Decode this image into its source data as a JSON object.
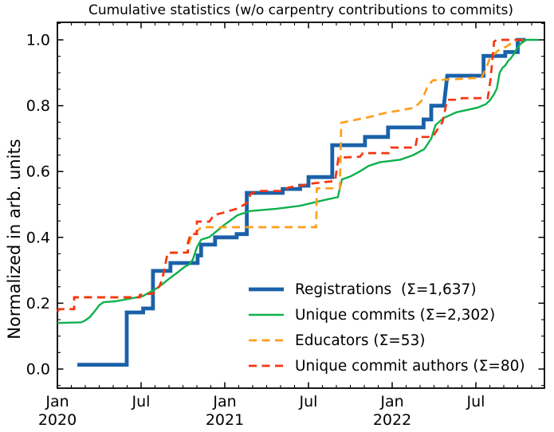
{
  "title": "Cumulative statistics (w/o carpentry contributions to commits)",
  "chart_data": {
    "type": "line",
    "title": "Cumulative statistics (w/o carpentry contributions to commits)",
    "xlabel": "",
    "ylabel": "Normalized in arb. units",
    "x_unit": "months since Jan 2020",
    "xlim_months": [
      0,
      34.9
    ],
    "ylim": [
      -0.06,
      1.05
    ],
    "grid": false,
    "tick_direction": "in",
    "ticks_on_all_sides": true,
    "legend_position": "lower right",
    "x_major_ticks": [
      {
        "month": 0,
        "label": "Jan",
        "year": "2020"
      },
      {
        "month": 6,
        "label": "Jul",
        "year": ""
      },
      {
        "month": 12,
        "label": "Jan",
        "year": "2021"
      },
      {
        "month": 18,
        "label": "Jul",
        "year": ""
      },
      {
        "month": 24,
        "label": "Jan",
        "year": "2022"
      },
      {
        "month": 30,
        "label": "Jul",
        "year": ""
      }
    ],
    "x_minor_tick_every_months": 1,
    "y_major_ticks": [
      {
        "value": 0.0,
        "label": "0.0"
      },
      {
        "value": 0.2,
        "label": "0.2"
      },
      {
        "value": 0.4,
        "label": "0.4"
      },
      {
        "value": 0.6,
        "label": "0.6"
      },
      {
        "value": 0.8,
        "label": "0.8"
      },
      {
        "value": 1.0,
        "label": "1.0"
      }
    ],
    "y_minor_tick_step": 0.05,
    "series": [
      {
        "name": "registrations",
        "label": "Registrations  (Σ=1,637)",
        "total": "1,637",
        "color": "#1a61a9",
        "style": "solid",
        "width": 4.8,
        "points": [
          [
            1.43,
            0.013
          ],
          [
            4.97,
            0.013
          ],
          [
            4.97,
            0.172
          ],
          [
            6.15,
            0.172
          ],
          [
            6.15,
            0.184
          ],
          [
            6.85,
            0.184
          ],
          [
            6.85,
            0.298
          ],
          [
            8.1,
            0.298
          ],
          [
            8.1,
            0.322
          ],
          [
            10.05,
            0.322
          ],
          [
            10.05,
            0.345
          ],
          [
            10.3,
            0.345
          ],
          [
            10.3,
            0.378
          ],
          [
            11.3,
            0.378
          ],
          [
            11.3,
            0.4
          ],
          [
            12.85,
            0.4
          ],
          [
            12.85,
            0.41
          ],
          [
            13.58,
            0.41
          ],
          [
            13.58,
            0.535
          ],
          [
            16.15,
            0.535
          ],
          [
            16.15,
            0.547
          ],
          [
            17.4,
            0.547
          ],
          [
            17.4,
            0.557
          ],
          [
            18.0,
            0.557
          ],
          [
            18.0,
            0.583
          ],
          [
            19.7,
            0.583
          ],
          [
            19.7,
            0.68
          ],
          [
            22.05,
            0.68
          ],
          [
            22.05,
            0.705
          ],
          [
            23.7,
            0.705
          ],
          [
            23.7,
            0.734
          ],
          [
            26.25,
            0.734
          ],
          [
            26.25,
            0.758
          ],
          [
            26.8,
            0.758
          ],
          [
            26.8,
            0.8
          ],
          [
            27.7,
            0.8
          ],
          [
            27.95,
            0.891
          ],
          [
            30.55,
            0.891
          ],
          [
            30.55,
            0.951
          ],
          [
            32.1,
            0.951
          ],
          [
            32.1,
            0.963
          ],
          [
            33.0,
            0.963
          ],
          [
            33.0,
            1.0
          ],
          [
            33.55,
            1.0
          ]
        ]
      },
      {
        "name": "unique_commits",
        "label": "Unique commits (Σ=2,302)",
        "total": "2,302",
        "color": "#0fb14c",
        "style": "solid",
        "width": 2.4,
        "points": [
          [
            0,
            0.14
          ],
          [
            1.7,
            0.142
          ],
          [
            2.0,
            0.148
          ],
          [
            2.3,
            0.157
          ],
          [
            2.7,
            0.177
          ],
          [
            3.0,
            0.194
          ],
          [
            3.3,
            0.203
          ],
          [
            4.2,
            0.206
          ],
          [
            5.1,
            0.213
          ],
          [
            6.1,
            0.221
          ],
          [
            7.0,
            0.242
          ],
          [
            7.5,
            0.257
          ],
          [
            8.0,
            0.274
          ],
          [
            8.6,
            0.293
          ],
          [
            9.1,
            0.31
          ],
          [
            9.45,
            0.318
          ],
          [
            9.7,
            0.332
          ],
          [
            10.0,
            0.37
          ],
          [
            10.3,
            0.393
          ],
          [
            10.9,
            0.401
          ],
          [
            11.9,
            0.436
          ],
          [
            12.9,
            0.467
          ],
          [
            13.8,
            0.48
          ],
          [
            15.7,
            0.487
          ],
          [
            17.4,
            0.496
          ],
          [
            18.2,
            0.504
          ],
          [
            19.4,
            0.516
          ],
          [
            20.1,
            0.522
          ],
          [
            20.4,
            0.576
          ],
          [
            21.0,
            0.585
          ],
          [
            21.7,
            0.601
          ],
          [
            22.3,
            0.617
          ],
          [
            23.1,
            0.628
          ],
          [
            24.6,
            0.636
          ],
          [
            25.5,
            0.65
          ],
          [
            26.3,
            0.668
          ],
          [
            26.8,
            0.7
          ],
          [
            27.1,
            0.741
          ],
          [
            27.7,
            0.763
          ],
          [
            28.6,
            0.78
          ],
          [
            30.1,
            0.794
          ],
          [
            30.7,
            0.804
          ],
          [
            31.0,
            0.816
          ],
          [
            31.3,
            0.835
          ],
          [
            31.5,
            0.852
          ],
          [
            31.7,
            0.9
          ],
          [
            31.9,
            0.915
          ],
          [
            32.1,
            0.922
          ],
          [
            32.3,
            0.935
          ],
          [
            32.5,
            0.944
          ],
          [
            32.7,
            0.956
          ],
          [
            32.9,
            0.971
          ],
          [
            33.2,
            0.988
          ],
          [
            33.6,
            1.0
          ],
          [
            34.5,
            1.0
          ]
        ]
      },
      {
        "name": "educators",
        "label": "Educators (Σ=53)",
        "total": "53",
        "color": "#ff9e1c",
        "style": "dashed",
        "width": 2.7,
        "points": [
          [
            0,
            0.175
          ],
          [
            0.15,
            0.182
          ],
          [
            1.2,
            0.182
          ],
          [
            1.2,
            0.218
          ],
          [
            5.9,
            0.218
          ],
          [
            5.9,
            0.225
          ],
          [
            6.9,
            0.23
          ],
          [
            7.0,
            0.242
          ],
          [
            7.3,
            0.25
          ],
          [
            7.45,
            0.266
          ],
          [
            7.55,
            0.28
          ],
          [
            7.7,
            0.31
          ],
          [
            7.9,
            0.353
          ],
          [
            9.35,
            0.354
          ],
          [
            9.45,
            0.383
          ],
          [
            9.6,
            0.402
          ],
          [
            10.3,
            0.431
          ],
          [
            18.55,
            0.431
          ],
          [
            18.6,
            0.549
          ],
          [
            20.25,
            0.549
          ],
          [
            20.35,
            0.748
          ],
          [
            20.9,
            0.753
          ],
          [
            22.3,
            0.765
          ],
          [
            23.4,
            0.777
          ],
          [
            25.6,
            0.794
          ],
          [
            26.1,
            0.815
          ],
          [
            26.5,
            0.855
          ],
          [
            26.9,
            0.877
          ],
          [
            30.4,
            0.885
          ],
          [
            30.7,
            0.91
          ],
          [
            31.0,
            0.944
          ],
          [
            31.6,
            0.968
          ],
          [
            32.2,
            0.98
          ],
          [
            32.7,
            0.995
          ],
          [
            33.0,
            1.0
          ],
          [
            33.6,
            1.0
          ]
        ]
      },
      {
        "name": "unique_commit_authors",
        "label": "Unique commit authors (Σ=80)",
        "total": "80",
        "color": "#f53512",
        "style": "dashed",
        "width": 2.7,
        "points": [
          [
            0,
            0.175
          ],
          [
            0.15,
            0.182
          ],
          [
            1.2,
            0.182
          ],
          [
            1.2,
            0.218
          ],
          [
            5.9,
            0.218
          ],
          [
            5.9,
            0.225
          ],
          [
            6.9,
            0.23
          ],
          [
            7.0,
            0.242
          ],
          [
            7.3,
            0.25
          ],
          [
            7.45,
            0.266
          ],
          [
            7.55,
            0.28
          ],
          [
            7.7,
            0.31
          ],
          [
            7.9,
            0.353
          ],
          [
            9.35,
            0.354
          ],
          [
            9.35,
            0.383
          ],
          [
            9.55,
            0.41
          ],
          [
            10.0,
            0.41
          ],
          [
            10.0,
            0.448
          ],
          [
            10.9,
            0.448
          ],
          [
            11.2,
            0.467
          ],
          [
            11.9,
            0.475
          ],
          [
            12.85,
            0.487
          ],
          [
            13.6,
            0.504
          ],
          [
            13.85,
            0.532
          ],
          [
            14.3,
            0.541
          ],
          [
            16.1,
            0.541
          ],
          [
            16.6,
            0.552
          ],
          [
            17.4,
            0.557
          ],
          [
            18.3,
            0.564
          ],
          [
            19.4,
            0.569
          ],
          [
            19.9,
            0.571
          ],
          [
            20.15,
            0.642
          ],
          [
            21.7,
            0.645
          ],
          [
            21.9,
            0.656
          ],
          [
            23.75,
            0.656
          ],
          [
            23.9,
            0.673
          ],
          [
            25.65,
            0.673
          ],
          [
            25.8,
            0.705
          ],
          [
            26.9,
            0.705
          ],
          [
            27.2,
            0.725
          ],
          [
            27.6,
            0.75
          ],
          [
            27.95,
            0.818
          ],
          [
            28.9,
            0.818
          ],
          [
            29.0,
            0.823
          ],
          [
            30.85,
            0.823
          ],
          [
            31.05,
            0.88
          ],
          [
            31.3,
            0.995
          ],
          [
            31.5,
            1.0
          ],
          [
            33.4,
            1.0
          ]
        ]
      }
    ]
  }
}
